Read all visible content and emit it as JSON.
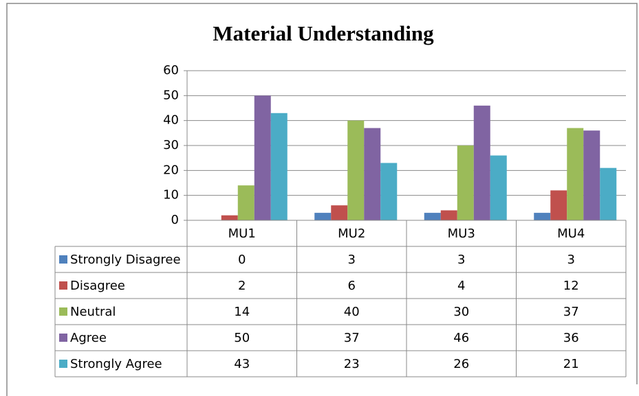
{
  "chart_data": {
    "type": "bar",
    "title": "Material Understanding",
    "categories": [
      "MU1",
      "MU2",
      "MU3",
      "MU4"
    ],
    "series": [
      {
        "name": "Strongly Disagree",
        "color": "#4f81bd",
        "values": [
          0,
          3,
          3,
          3
        ]
      },
      {
        "name": "Disagree",
        "color": "#c0504d",
        "values": [
          2,
          6,
          4,
          12
        ]
      },
      {
        "name": "Neutral",
        "color": "#9bbb59",
        "values": [
          14,
          40,
          30,
          37
        ]
      },
      {
        "name": "Agree",
        "color": "#8064a2",
        "values": [
          50,
          37,
          46,
          36
        ]
      },
      {
        "name": "Strongly Agree",
        "color": "#4bacc6",
        "values": [
          43,
          23,
          26,
          21
        ]
      }
    ],
    "ylim": [
      0,
      60
    ],
    "yticks": [
      0,
      10,
      20,
      30,
      40,
      50,
      60
    ],
    "grid": true
  }
}
